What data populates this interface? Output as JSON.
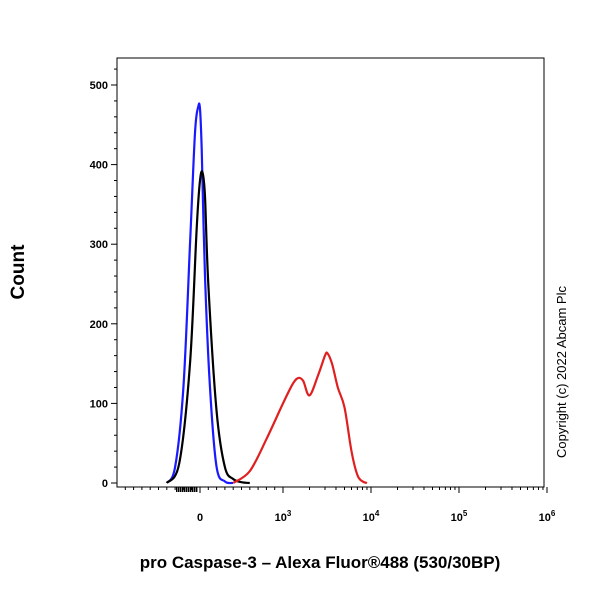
{
  "chart_data": {
    "type": "line",
    "xlabel": "pro Caspase-3 – Alexa Fluor®488 (530/30BP)",
    "ylabel": "Count",
    "ylim": [
      0,
      500
    ],
    "y_ticks": [
      "0",
      "100",
      "200",
      "300",
      "400",
      "500"
    ],
    "x_scale": "biexponential",
    "x_ticks": [
      {
        "base": "0",
        "exp": ""
      },
      {
        "base": "10",
        "exp": "3"
      },
      {
        "base": "10",
        "exp": "4"
      },
      {
        "base": "10",
        "exp": "5"
      },
      {
        "base": "10",
        "exp": "6"
      }
    ],
    "grid": false,
    "legend": "none",
    "annotation": "Copyright (c) 2022 Abcam Plc",
    "series": [
      {
        "color": "#1a1aff",
        "x": [
          -400,
          -300,
          -200,
          -120,
          -60,
          -20,
          0,
          20,
          60,
          120,
          200,
          300,
          400
        ],
        "y": [
          0,
          20,
          120,
          300,
          440,
          473,
          470,
          420,
          260,
          120,
          20,
          2,
          0
        ]
      },
      {
        "color": "#000000",
        "x": [
          -400,
          -250,
          -120,
          -40,
          0,
          30,
          60,
          100,
          200,
          300,
          400,
          500,
          600
        ],
        "y": [
          0,
          25,
          150,
          320,
          380,
          390,
          360,
          250,
          90,
          20,
          5,
          1,
          0
        ]
      },
      {
        "color": "#e02020",
        "x": [
          400,
          600,
          800,
          1000,
          1300,
          1500,
          1700,
          2000,
          2500,
          3000,
          3200,
          3600,
          4200,
          5000,
          6000,
          7000,
          8000,
          9000
        ],
        "y": [
          0,
          15,
          55,
          100,
          125,
          132,
          128,
          110,
          135,
          160,
          163,
          150,
          120,
          95,
          40,
          10,
          2,
          0
        ]
      }
    ]
  }
}
